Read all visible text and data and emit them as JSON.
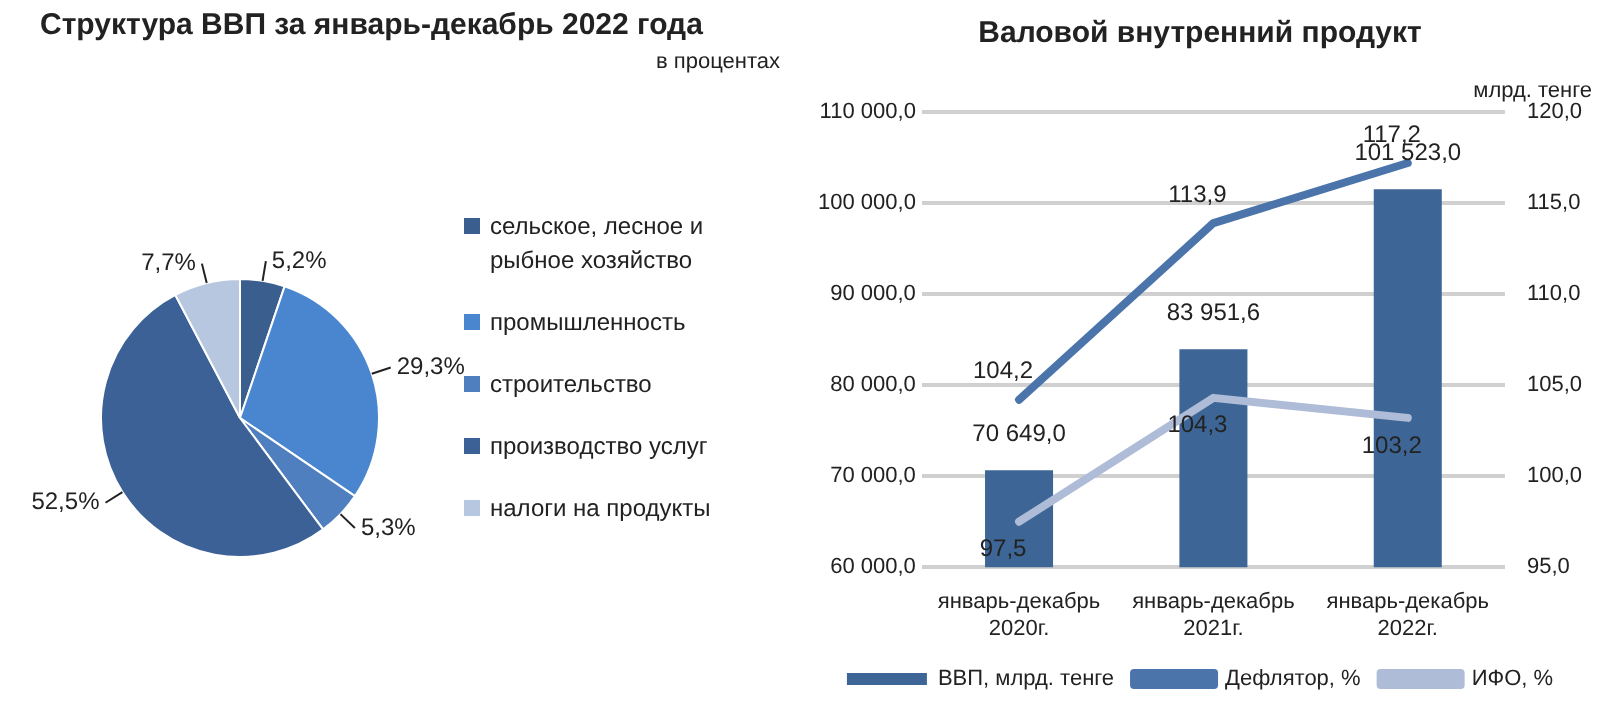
{
  "chart_data": [
    {
      "type": "pie",
      "title": "Структура ВВП за январь-декабрь 2022 года",
      "subtitle": "в процентах",
      "categories": [
        "сельское, лесное и рыбное хозяйство",
        "промышленность",
        "строительство",
        "производство услуг",
        "налоги на продукты"
      ],
      "values": [
        5.2,
        29.3,
        5.3,
        52.5,
        7.7
      ],
      "colors": [
        "#3a5f8f",
        "#4a86d0",
        "#4f7fbf",
        "#3b6196",
        "#b8c7e0"
      ],
      "value_labels": [
        "5,2%",
        "29,3%",
        "5,3%",
        "52,5%",
        "7,7%"
      ],
      "legend": "right"
    },
    {
      "type": "bar",
      "title": "Валовой внутренний продукт",
      "annotations": [
        "млрд. тенге"
      ],
      "categories": [
        "январь-декабрь 2020г.",
        "январь-декабрь 2021г.",
        "январь-декабрь 2022г."
      ],
      "ylim": [
        60000,
        110000
      ],
      "yticks": [
        {
          "value": 60000,
          "label": "60 000,0"
        },
        {
          "value": 70000,
          "label": "70 000,0"
        },
        {
          "value": 80000,
          "label": "80 000,0"
        },
        {
          "value": 90000,
          "label": "90 000,0"
        },
        {
          "value": 100000,
          "label": "100 000,0"
        },
        {
          "value": 110000,
          "label": "110 000,0"
        }
      ],
      "y2lim": [
        95,
        120
      ],
      "y2ticks": [
        {
          "value": 95,
          "label": "95,0"
        },
        {
          "value": 100,
          "label": "100,0"
        },
        {
          "value": 105,
          "label": "105,0"
        },
        {
          "value": 110,
          "label": "110,0"
        },
        {
          "value": 115,
          "label": "115,0"
        },
        {
          "value": 120,
          "label": "120,0"
        }
      ],
      "grid": "y",
      "legend": "bottom",
      "marker": "none",
      "line_style": "solid",
      "series": [
        {
          "name": "ВВП, млрд. тенге",
          "type": "bar",
          "color": "#3d6696",
          "values": [
            70649.0,
            83951.6,
            101523.0
          ],
          "value_labels": [
            "70 649,0",
            "83 951,6",
            "101 523,0"
          ]
        },
        {
          "name": "Дефлятор, %",
          "type": "line",
          "axis": "y2",
          "color": "#4a74aa",
          "values": [
            104.2,
            113.9,
            117.2
          ],
          "value_labels": [
            "104,2",
            "113,9",
            "117,2"
          ]
        },
        {
          "name": "ИФО, %",
          "type": "line",
          "axis": "y2",
          "color": "#aebcd8",
          "values": [
            97.5,
            104.3,
            103.2
          ],
          "value_labels": [
            "97,5",
            "104,3",
            "103,2"
          ]
        }
      ]
    }
  ]
}
